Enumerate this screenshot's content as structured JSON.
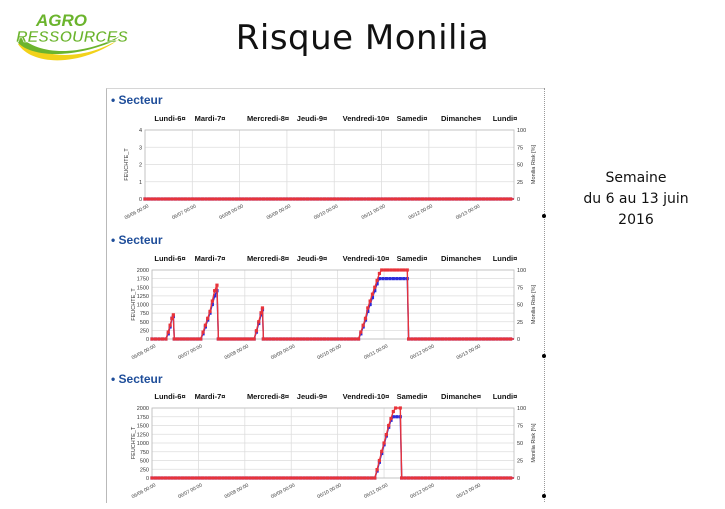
{
  "logo": {
    "text_line1": "AGRO",
    "text_line2": "RESSOURCES",
    "colors": {
      "green": "#6bb42d",
      "yellow": "#f2d21a"
    }
  },
  "slide": {
    "title": "Risque Monilia",
    "side_note": [
      "Semaine",
      "du 6 au 13 juin",
      "2016"
    ]
  },
  "colors": {
    "humidity_series": "#2b2bd9",
    "risk_series": "#e8333a",
    "grid": "#dddddd"
  },
  "chart_data": [
    {
      "type": "line",
      "section_label": "Secteur",
      "days": [
        "Lundi-6¤",
        "Mardi-7¤",
        "Mercredi-8¤",
        "Jeudi-9¤",
        "Vendredi-10¤",
        "Samedi¤",
        "Dimanche¤",
        "Lundi¤"
      ],
      "xticks": [
        "06/06 00:00",
        "06/07 00:00",
        "06/08 00:00",
        "06/09 00:00",
        "06/10 00:00",
        "06/11 00:00",
        "06/12 00:00",
        "06/13 00:00"
      ],
      "ylabel": "FEUCHTE_T",
      "ylabel_right": "Monilia Risk [%]",
      "ylim": [
        0,
        4
      ],
      "yticks": [
        0,
        1,
        2,
        3,
        4
      ],
      "ylim_right": [
        0,
        100
      ],
      "yticks_right": [
        0,
        25,
        50,
        75,
        100
      ],
      "xlim": [
        0,
        7.8
      ],
      "series": [
        {
          "axis": "left",
          "color": "#2b2bd9",
          "points": [
            [
              0,
              0
            ],
            [
              7.8,
              0
            ]
          ]
        },
        {
          "axis": "right",
          "color": "#e8333a",
          "points": [
            [
              0,
              0
            ],
            [
              7.8,
              0
            ]
          ]
        }
      ]
    },
    {
      "type": "line",
      "section_label": "Secteur",
      "days": [
        "Lundi-6¤",
        "Mardi-7¤",
        "Mercredi-8¤",
        "Jeudi-9¤",
        "Vendredi-10¤",
        "Samedi¤",
        "Dimanche¤",
        "Lundi¤"
      ],
      "xticks": [
        "06/06 00:00",
        "06/07 00:00",
        "06/08 00:00",
        "06/09 00:00",
        "06/10 00:00",
        "06/11 00:00",
        "06/12 00:00",
        "06/13 00:00"
      ],
      "ylabel": "FEUCHTE_T",
      "ylabel_right": "Monilia Risk [%]",
      "ylim": [
        0,
        2000
      ],
      "yticks": [
        0,
        250,
        500,
        750,
        1000,
        1250,
        1500,
        1750,
        2000
      ],
      "ylim_right": [
        0,
        100
      ],
      "yticks_right": [
        0,
        25,
        50,
        75,
        100
      ],
      "xlim": [
        0,
        7.8
      ],
      "series": [
        {
          "axis": "left",
          "color": "#2b2bd9",
          "points": [
            [
              0,
              0
            ],
            [
              0.3,
              0
            ],
            [
              0.35,
              150
            ],
            [
              0.39,
              350
            ],
            [
              0.43,
              600
            ],
            [
              0.46,
              650
            ],
            [
              0.48,
              0
            ],
            [
              1.05,
              0
            ],
            [
              1.1,
              150
            ],
            [
              1.15,
              350
            ],
            [
              1.2,
              550
            ],
            [
              1.25,
              750
            ],
            [
              1.3,
              1000
            ],
            [
              1.35,
              1250
            ],
            [
              1.4,
              1400
            ],
            [
              1.43,
              0
            ],
            [
              2.2,
              0
            ],
            [
              2.25,
              200
            ],
            [
              2.3,
              450
            ],
            [
              2.35,
              700
            ],
            [
              2.38,
              850
            ],
            [
              2.4,
              0
            ],
            [
              4.45,
              0
            ],
            [
              4.5,
              150
            ],
            [
              4.55,
              350
            ],
            [
              4.6,
              550
            ],
            [
              4.65,
              800
            ],
            [
              4.7,
              1000
            ],
            [
              4.75,
              1200
            ],
            [
              4.8,
              1400
            ],
            [
              4.85,
              1600
            ],
            [
              4.9,
              1750
            ],
            [
              5.5,
              1750
            ],
            [
              5.53,
              0
            ],
            [
              7.8,
              0
            ]
          ]
        },
        {
          "axis": "right",
          "color": "#e8333a",
          "points": [
            [
              0,
              0
            ],
            [
              0.3,
              0
            ],
            [
              0.35,
              10
            ],
            [
              0.39,
              20
            ],
            [
              0.43,
              30
            ],
            [
              0.46,
              35
            ],
            [
              0.48,
              0
            ],
            [
              1.05,
              0
            ],
            [
              1.1,
              10
            ],
            [
              1.15,
              20
            ],
            [
              1.2,
              30
            ],
            [
              1.25,
              40
            ],
            [
              1.3,
              55
            ],
            [
              1.35,
              70
            ],
            [
              1.4,
              78
            ],
            [
              1.43,
              0
            ],
            [
              2.2,
              0
            ],
            [
              2.25,
              12
            ],
            [
              2.3,
              25
            ],
            [
              2.35,
              38
            ],
            [
              2.38,
              45
            ],
            [
              2.4,
              0
            ],
            [
              4.45,
              0
            ],
            [
              4.5,
              10
            ],
            [
              4.55,
              20
            ],
            [
              4.6,
              30
            ],
            [
              4.65,
              45
            ],
            [
              4.7,
              55
            ],
            [
              4.75,
              65
            ],
            [
              4.8,
              75
            ],
            [
              4.85,
              85
            ],
            [
              4.9,
              95
            ],
            [
              4.95,
              100
            ],
            [
              5.5,
              100
            ],
            [
              5.53,
              0
            ],
            [
              7.8,
              0
            ]
          ]
        }
      ]
    },
    {
      "type": "line",
      "section_label": "Secteur",
      "days": [
        "Lundi-6¤",
        "Mardi-7¤",
        "Mercredi-8¤",
        "Jeudi-9¤",
        "Vendredi-10¤",
        "Samedi¤",
        "Dimanche¤",
        "Lundi¤"
      ],
      "xticks": [
        "06/06 00:00",
        "06/07 00:00",
        "06/08 00:00",
        "06/09 00:00",
        "06/10 00:00",
        "06/11 00:00",
        "06/12 00:00",
        "06/13 00:00"
      ],
      "ylabel": "FEUCHTE_T",
      "ylabel_right": "Monilia Risk [%]",
      "ylim": [
        0,
        2000
      ],
      "yticks": [
        0,
        250,
        500,
        750,
        1000,
        1250,
        1500,
        1750,
        2000
      ],
      "ylim_right": [
        0,
        100
      ],
      "yticks_right": [
        0,
        25,
        50,
        75,
        100
      ],
      "xlim": [
        0,
        7.8
      ],
      "series": [
        {
          "axis": "left",
          "color": "#2b2bd9",
          "points": [
            [
              0,
              0
            ],
            [
              4.8,
              0
            ],
            [
              4.85,
              200
            ],
            [
              4.9,
              450
            ],
            [
              4.95,
              700
            ],
            [
              5.0,
              950
            ],
            [
              5.05,
              1200
            ],
            [
              5.1,
              1450
            ],
            [
              5.15,
              1650
            ],
            [
              5.2,
              1750
            ],
            [
              5.35,
              1750
            ],
            [
              5.38,
              0
            ],
            [
              7.8,
              0
            ]
          ]
        },
        {
          "axis": "right",
          "color": "#e8333a",
          "points": [
            [
              0,
              0
            ],
            [
              4.8,
              0
            ],
            [
              4.85,
              12
            ],
            [
              4.9,
              25
            ],
            [
              4.95,
              38
            ],
            [
              5.0,
              50
            ],
            [
              5.05,
              62
            ],
            [
              5.1,
              75
            ],
            [
              5.15,
              85
            ],
            [
              5.2,
              95
            ],
            [
              5.25,
              100
            ],
            [
              5.35,
              100
            ],
            [
              5.38,
              0
            ],
            [
              7.8,
              0
            ]
          ]
        }
      ]
    }
  ]
}
